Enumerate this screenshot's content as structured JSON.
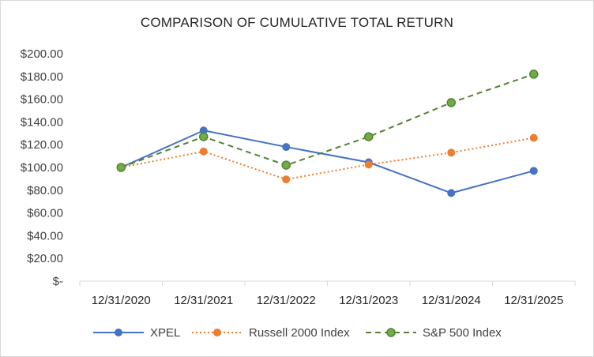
{
  "chart_data": {
    "type": "line",
    "title": "COMPARISON OF CUMULATIVE TOTAL RETURN",
    "xlabel": "",
    "ylabel": "",
    "categories": [
      "12/31/2020",
      "12/31/2021",
      "12/31/2022",
      "12/31/2023",
      "12/31/2024",
      "12/31/2025"
    ],
    "y_ticks": [
      "$-",
      "$20.00",
      "$40.00",
      "$60.00",
      "$80.00",
      "$100.00",
      "$120.00",
      "$140.00",
      "$160.00",
      "$180.00",
      "$200.00"
    ],
    "ylim": [
      0,
      200
    ],
    "grid": false,
    "legend_position": "bottom",
    "series": [
      {
        "name": "XPEL",
        "values": [
          100,
          132.5,
          118,
          104.5,
          77.5,
          97
        ],
        "color": "#4472c4",
        "line": "solid",
        "marker": "circle"
      },
      {
        "name": "Russell 2000 Index",
        "values": [
          100,
          114,
          89.5,
          102.5,
          113,
          126
        ],
        "color": "#ed7d31",
        "line": "dotted",
        "marker": "circle"
      },
      {
        "name": "S&P 500 Index",
        "values": [
          100,
          127,
          102,
          127,
          157,
          182
        ],
        "color": "#548235",
        "line": "dashed",
        "marker": "circle"
      }
    ]
  }
}
